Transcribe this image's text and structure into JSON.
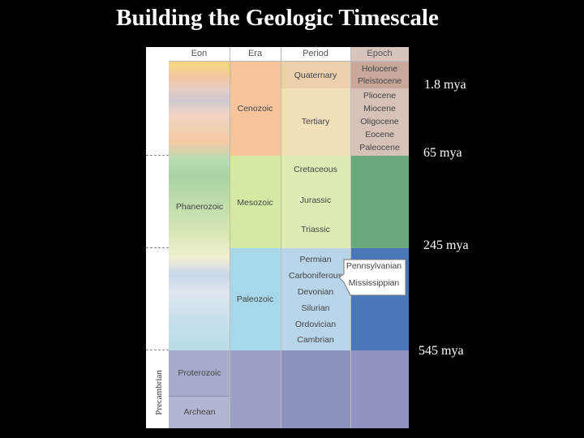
{
  "title": "Building the Geologic Timescale",
  "headers": {
    "eon": "Eon",
    "era": "Era",
    "period": "Period",
    "epoch": "Epoch"
  },
  "eons": {
    "phanerozoic": "Phanerozoic",
    "precambrian": "Precambrian"
  },
  "eras": {
    "cenozoic": "Cenozoic",
    "mesozoic": "Mesozoic",
    "paleozoic": "Paleozoic",
    "proterozoic": "Proterozoic",
    "archean": "Archean"
  },
  "periods": {
    "quaternary": "Quaternary",
    "tertiary": "Tertiary",
    "cretaceous": "Cretaceous",
    "jurassic": "Jurassic",
    "triassic": "Triassic",
    "permian": "Permian",
    "carboniferous": "Carboniferous",
    "devonian": "Devonian",
    "silurian": "Silurian",
    "ordovician": "Ordovician",
    "cambrian": "Cambrian"
  },
  "subperiods": {
    "pennsylvanian": "Pennsylvanian",
    "mississippian": "Mississippian"
  },
  "epochs": {
    "holocene": "Holocene",
    "pleistocene": "Pleistocene",
    "pliocene": "Pliocene",
    "miocene": "Miocene",
    "oligocene": "Oligocene",
    "eocene": "Eocene",
    "paleocene": "Paleocene"
  },
  "boundaries": {
    "b1": "1.8 mya",
    "b2": "65 mya",
    "b3": "245 mya",
    "b4": "545 mya"
  },
  "colors": {
    "cenozoic": "#f7c8a0",
    "tertiary": "#f3dfb8",
    "quaternary": "#e8ceb0",
    "epoch_cenozoic": "#c9b2a6",
    "mesozoic": "#d6eba8",
    "mesozoic_epoch": "#6aa97c",
    "paleozoic": "#a6d6e8",
    "paleozoic_period": "#b8d4ea",
    "paleozoic_epoch": "#4a78b8",
    "precambrian": "#8f95c0"
  }
}
